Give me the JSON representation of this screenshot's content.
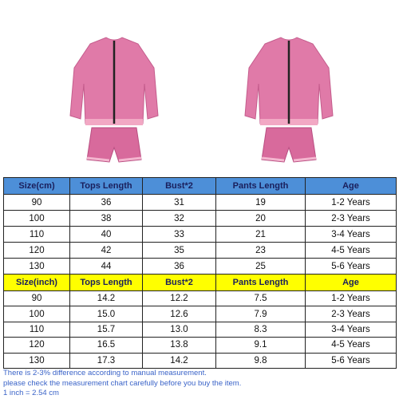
{
  "table": {
    "sections": [
      {
        "header": [
          "Size(cm)",
          "Tops Length",
          "Bust*2",
          "Pants Length",
          "Age"
        ],
        "rows": [
          [
            "90",
            "36",
            "31",
            "19",
            "1-2 Years"
          ],
          [
            "100",
            "38",
            "32",
            "20",
            "2-3 Years"
          ],
          [
            "110",
            "40",
            "33",
            "21",
            "3-4 Years"
          ],
          [
            "120",
            "42",
            "35",
            "23",
            "4-5 Years"
          ],
          [
            "130",
            "44",
            "36",
            "25",
            "5-6 Years"
          ]
        ]
      },
      {
        "header": [
          "Size(inch)",
          "Tops Length",
          "Bust*2",
          "Pants Length",
          "Age"
        ],
        "rows": [
          [
            "90",
            "14.2",
            "12.2",
            "7.5",
            "1-2 Years"
          ],
          [
            "100",
            "15.0",
            "12.6",
            "7.9",
            "2-3 Years"
          ],
          [
            "110",
            "15.7",
            "13.0",
            "8.3",
            "3-4 Years"
          ],
          [
            "120",
            "16.5",
            "13.8",
            "9.1",
            "4-5 Years"
          ],
          [
            "130",
            "17.3",
            "14.2",
            "9.8",
            "5-6 Years"
          ]
        ]
      }
    ]
  },
  "notes": [
    "There is 2-3% difference according to manual measurement.",
    "please check the measurement chart carefully before you buy the item.",
    "1 inch = 2.54 cm"
  ]
}
